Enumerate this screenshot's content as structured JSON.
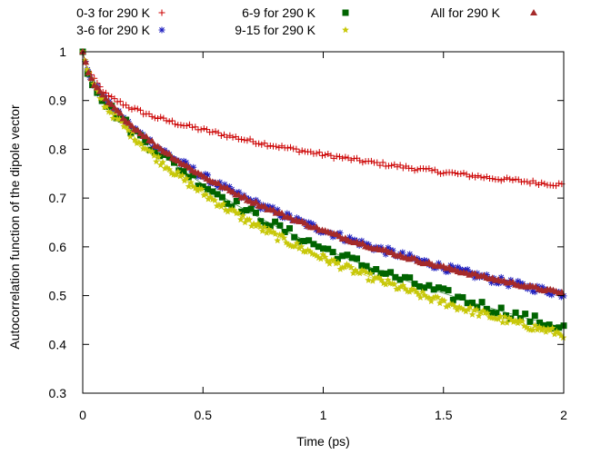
{
  "chart_data": {
    "type": "scatter",
    "title": "",
    "xlabel": "Time (ps)",
    "ylabel": "Autocorrelation function of the dipole vector",
    "xlim": [
      0,
      2
    ],
    "ylim": [
      0.3,
      1
    ],
    "xticks": [
      "0",
      "0.5",
      "1",
      "1.5",
      "2"
    ],
    "yticks": [
      "0.3",
      "0.4",
      "0.5",
      "0.6",
      "0.7",
      "0.8",
      "0.9",
      "1"
    ],
    "grid": false,
    "legend_position": "top, outside plot, 3 columns",
    "series": [
      {
        "name": "0-3 for 290 K",
        "marker": "plus",
        "color": "#cc0000",
        "x": [
          0,
          0.02,
          0.05,
          0.1,
          0.2,
          0.3,
          0.4,
          0.5,
          0.6,
          0.7,
          0.8,
          0.9,
          1.0,
          1.1,
          1.2,
          1.3,
          1.4,
          1.5,
          1.6,
          1.7,
          1.8,
          1.9,
          2.0
        ],
        "y": [
          1.0,
          0.965,
          0.94,
          0.91,
          0.885,
          0.866,
          0.852,
          0.84,
          0.828,
          0.817,
          0.807,
          0.798,
          0.789,
          0.781,
          0.773,
          0.766,
          0.759,
          0.753,
          0.747,
          0.741,
          0.736,
          0.731,
          0.727
        ]
      },
      {
        "name": "3-6 for 290 K",
        "marker": "star",
        "color": "#1f1fbf",
        "x": [
          0,
          0.02,
          0.05,
          0.1,
          0.2,
          0.3,
          0.4,
          0.5,
          0.6,
          0.7,
          0.8,
          0.9,
          1.0,
          1.1,
          1.2,
          1.3,
          1.4,
          1.5,
          1.6,
          1.7,
          1.8,
          1.9,
          2.0
        ],
        "y": [
          1.0,
          0.96,
          0.93,
          0.895,
          0.847,
          0.808,
          0.775,
          0.745,
          0.718,
          0.694,
          0.672,
          0.652,
          0.634,
          0.617,
          0.601,
          0.586,
          0.572,
          0.558,
          0.546,
          0.534,
          0.523,
          0.513,
          0.503
        ]
      },
      {
        "name": "6-9 for 290 K",
        "marker": "square",
        "color": "#006400",
        "x": [
          0,
          0.02,
          0.05,
          0.1,
          0.2,
          0.3,
          0.4,
          0.5,
          0.6,
          0.7,
          0.8,
          0.9,
          1.0,
          1.1,
          1.2,
          1.3,
          1.4,
          1.5,
          1.6,
          1.7,
          1.8,
          1.9,
          2.0
        ],
        "y": [
          1.0,
          0.96,
          0.93,
          0.892,
          0.842,
          0.8,
          0.762,
          0.728,
          0.697,
          0.669,
          0.643,
          0.619,
          0.597,
          0.576,
          0.557,
          0.538,
          0.521,
          0.505,
          0.489,
          0.474,
          0.46,
          0.447,
          0.434
        ]
      },
      {
        "name": "9-15 for 290 K",
        "marker": "star-filled",
        "color": "#c8c80a",
        "x": [
          0,
          0.02,
          0.05,
          0.1,
          0.2,
          0.3,
          0.4,
          0.5,
          0.6,
          0.7,
          0.8,
          0.9,
          1.0,
          1.1,
          1.2,
          1.3,
          1.4,
          1.5,
          1.6,
          1.7,
          1.8,
          1.9,
          2.0
        ],
        "y": [
          1.0,
          0.96,
          0.925,
          0.885,
          0.832,
          0.785,
          0.745,
          0.71,
          0.678,
          0.649,
          0.623,
          0.599,
          0.577,
          0.556,
          0.537,
          0.519,
          0.502,
          0.486,
          0.471,
          0.457,
          0.444,
          0.432,
          0.421
        ]
      },
      {
        "name": "All for 290 K",
        "marker": "triangle",
        "color": "#a52a2a",
        "x": [
          0,
          0.02,
          0.05,
          0.1,
          0.2,
          0.3,
          0.4,
          0.5,
          0.6,
          0.7,
          0.8,
          0.9,
          1.0,
          1.1,
          1.2,
          1.3,
          1.4,
          1.5,
          1.6,
          1.7,
          1.8,
          1.9,
          2.0
        ],
        "y": [
          1.0,
          0.96,
          0.93,
          0.9,
          0.85,
          0.81,
          0.775,
          0.745,
          0.718,
          0.694,
          0.672,
          0.652,
          0.633,
          0.616,
          0.6,
          0.585,
          0.571,
          0.558,
          0.546,
          0.535,
          0.524,
          0.514,
          0.505
        ]
      }
    ]
  }
}
